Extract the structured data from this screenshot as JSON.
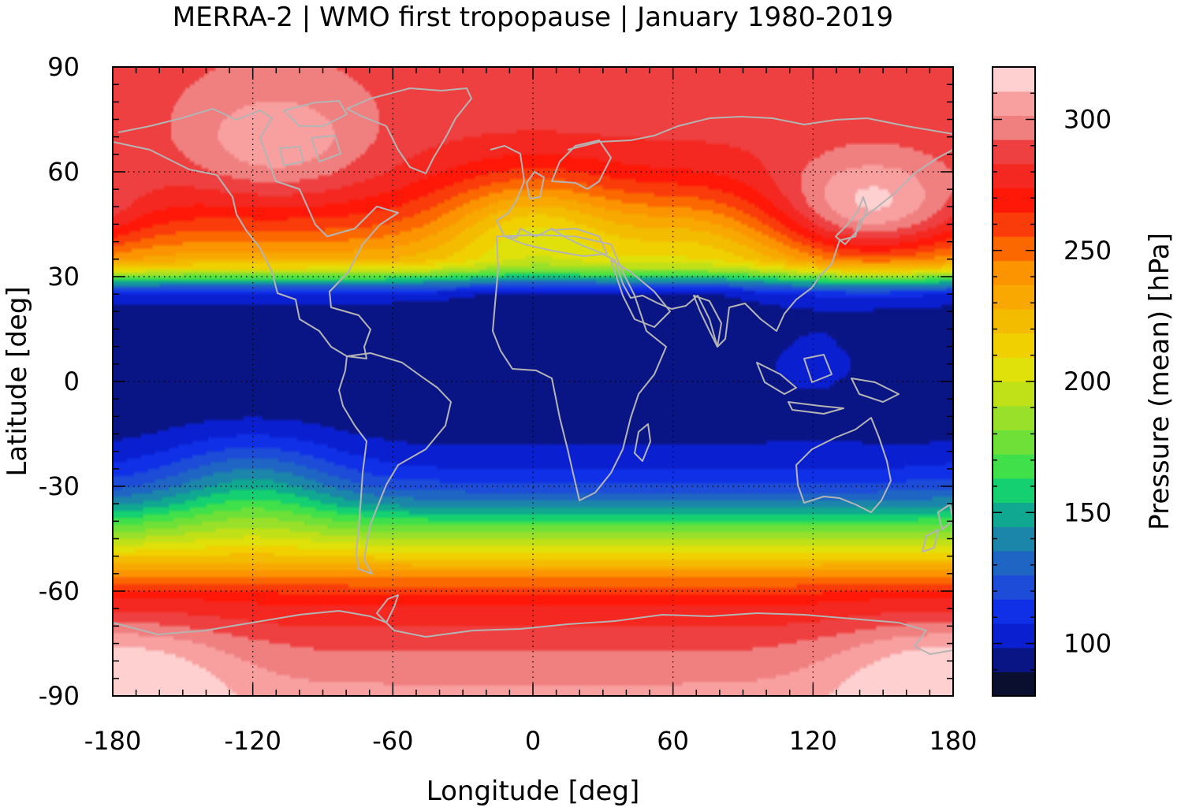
{
  "chart_data": {
    "type": "heatmap",
    "title": "MERRA-2 | WMO first tropopause | January 1980-2019",
    "xlabel": "Longitude [deg]",
    "ylabel": "Latitude [deg]",
    "xlim": [
      -180,
      180
    ],
    "ylim": [
      -90,
      90
    ],
    "x_ticks": [
      -180,
      -120,
      -60,
      0,
      60,
      120,
      180
    ],
    "y_ticks": [
      90,
      60,
      30,
      0,
      -30,
      -60,
      -90
    ],
    "grid": true,
    "colorbar": {
      "label": "Pressure (mean) [hPa]",
      "range": [
        80,
        320
      ],
      "ticks": [
        300,
        250,
        200,
        150,
        100
      ],
      "colors": [
        "#0a0f30",
        "#0a1585",
        "#0a1fd0",
        "#1030e8",
        "#1c4cd8",
        "#1f66c4",
        "#1c85aa",
        "#10a890",
        "#15d070",
        "#40e04a",
        "#6ee038",
        "#98e02a",
        "#c0e018",
        "#e0e00a",
        "#f0d000",
        "#f4bc00",
        "#f8a800",
        "#fb9400",
        "#fc6800",
        "#fa3c0a",
        "#ff1808",
        "#f42820",
        "#ee4040",
        "#f08080",
        "#f8a0a0",
        "#ffd0d0"
      ]
    },
    "zonal_profile": {
      "lat": [
        -90,
        -75,
        -62,
        -55,
        -50,
        -45,
        -40,
        -35,
        -30,
        -25,
        -20,
        -15,
        -10,
        0,
        10,
        20,
        25,
        28,
        32,
        35,
        40,
        45,
        50,
        55,
        60,
        70,
        80,
        90
      ],
      "pressure_hPa": [
        305,
        290,
        270,
        240,
        215,
        190,
        165,
        140,
        120,
        108,
        100,
        95,
        92,
        90,
        90,
        93,
        105,
        140,
        205,
        230,
        245,
        258,
        268,
        275,
        280,
        285,
        288,
        290
      ]
    },
    "anomalies": [
      {
        "lon": -110,
        "lat": 68,
        "delta_hPa": 25
      },
      {
        "lon": 145,
        "lat": 48,
        "delta_hPa": 45
      },
      {
        "lon": 0,
        "lat": 45,
        "delta_hPa": -45
      },
      {
        "lon": 70,
        "lat": 42,
        "delta_hPa": -25
      },
      {
        "lon": -120,
        "lat": -30,
        "delta_hPa": 30
      },
      {
        "lon": 120,
        "lat": 5,
        "delta_hPa": 10
      },
      {
        "lon": -160,
        "lat": -82,
        "delta_hPa": 15
      },
      {
        "lon": 160,
        "lat": -82,
        "delta_hPa": 15
      }
    ]
  }
}
